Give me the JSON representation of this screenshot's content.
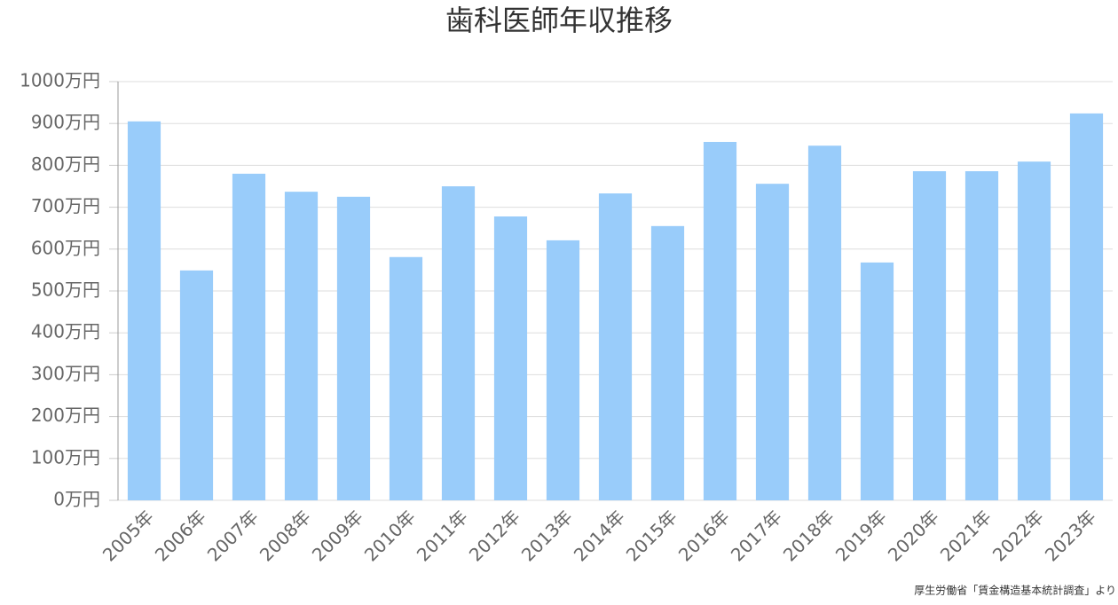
{
  "chart_data": {
    "type": "bar",
    "title": "歯科医師年収推移",
    "source": "厚生労働省「賃金構造基本統計調査」より",
    "categories": [
      "2005年",
      "2006年",
      "2007年",
      "2008年",
      "2009年",
      "2010年",
      "2011年",
      "2012年",
      "2013年",
      "2014年",
      "2015年",
      "2016年",
      "2017年",
      "2018年",
      "2019年",
      "2020年",
      "2021年",
      "2022年",
      "2023年"
    ],
    "values": [
      905,
      549,
      780,
      737,
      725,
      581,
      750,
      678,
      621,
      733,
      655,
      856,
      756,
      847,
      568,
      786,
      786,
      809,
      924
    ],
    "color": "#99ccfa",
    "ylim": [
      0,
      1000
    ],
    "yticks": [
      {
        "value": 0,
        "label": "0万円"
      },
      {
        "value": 100,
        "label": "100万円"
      },
      {
        "value": 200,
        "label": "200万円"
      },
      {
        "value": 300,
        "label": "300万円"
      },
      {
        "value": 400,
        "label": "400万円"
      },
      {
        "value": 500,
        "label": "500万円"
      },
      {
        "value": 600,
        "label": "600万円"
      },
      {
        "value": 700,
        "label": "700万円"
      },
      {
        "value": 800,
        "label": "800万円"
      },
      {
        "value": 900,
        "label": "900万円"
      },
      {
        "value": 1000,
        "label": "1000万円"
      }
    ],
    "grid": true
  }
}
